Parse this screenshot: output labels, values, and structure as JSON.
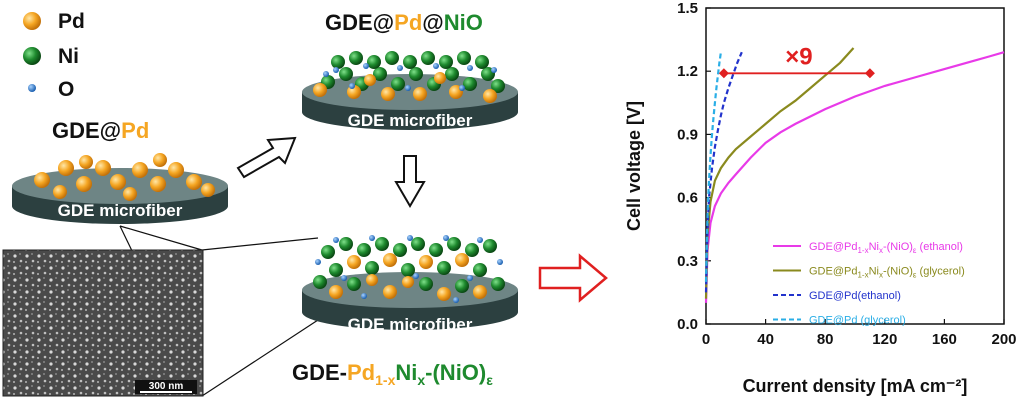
{
  "legend_left": {
    "items": [
      {
        "symbol": "Pd",
        "color": "#f5a623"
      },
      {
        "symbol": "Ni",
        "color": "#1e8a2e"
      },
      {
        "symbol": "O",
        "color": "#2a7fd4"
      }
    ]
  },
  "disk_label": "GDE microfiber",
  "stage1": {
    "prefix": "GDE@",
    "metal": "Pd"
  },
  "stage2": {
    "prefix": "GDE@",
    "metal": "Pd",
    "sep": "@",
    "oxide": "NiO"
  },
  "stage3": {
    "prefix": "GDE-",
    "pd": "Pd",
    "pd_sub": "1-x",
    "ni": "Ni",
    "ni_sub": "x",
    "oxide": "-(NiO)",
    "oxide_sub": "ε"
  },
  "sem": {
    "scale_bar": "300 nm"
  },
  "colors": {
    "pd": "#f5a623",
    "ni": "#1e8a2e",
    "o": "#2a7fd4",
    "disk": "#3e5656",
    "arrow_red": "#e02020"
  },
  "chart_data": {
    "type": "line",
    "xlabel": "Current density [mA cm⁻²]",
    "ylabel": "Cell voltage [V]",
    "xlim": [
      0,
      200
    ],
    "ylim": [
      0,
      1.5
    ],
    "xticks": [
      0,
      40,
      80,
      120,
      160,
      200
    ],
    "yticks": [
      0.0,
      0.3,
      0.6,
      0.9,
      1.2,
      1.5
    ],
    "x_tick_labels": [
      "0",
      "40",
      "80",
      "120",
      "160",
      "200"
    ],
    "y_tick_labels": [
      "0.0",
      "0.3",
      "0.6",
      "0.9",
      "1.2",
      "1.5"
    ],
    "grid": false,
    "legend_position": "bottom-right",
    "annotation": {
      "text": "×9",
      "y": 1.19,
      "x_from": 12,
      "x_to": 110
    },
    "series": [
      {
        "name_parts": [
          "GDE@Pd",
          "1-x",
          "Ni",
          "x",
          "-(NiO)",
          "ε",
          " (ethanol)"
        ],
        "color": "#e83ae8",
        "dash": "solid",
        "x": [
          0,
          1,
          3,
          6,
          10,
          15,
          20,
          30,
          40,
          50,
          60,
          80,
          100,
          120,
          140,
          160,
          180,
          190,
          200
        ],
        "y": [
          0.1,
          0.35,
          0.48,
          0.56,
          0.62,
          0.67,
          0.71,
          0.79,
          0.86,
          0.91,
          0.95,
          1.02,
          1.08,
          1.13,
          1.17,
          1.21,
          1.25,
          1.27,
          1.29
        ]
      },
      {
        "name_parts": [
          "GDE@Pd",
          "1-x",
          "Ni",
          "x",
          "-(NiO)",
          "ε",
          " (glycerol)"
        ],
        "color": "#8a8a1e",
        "dash": "solid",
        "x": [
          0,
          1,
          3,
          6,
          10,
          15,
          20,
          30,
          40,
          50,
          60,
          70,
          80,
          90,
          99
        ],
        "y": [
          0.12,
          0.42,
          0.58,
          0.68,
          0.74,
          0.79,
          0.83,
          0.89,
          0.95,
          1.01,
          1.06,
          1.12,
          1.18,
          1.24,
          1.31
        ]
      },
      {
        "name_parts": [
          "GDE@Pd(ethanol)"
        ],
        "color": "#2233cc",
        "dash": "dashed",
        "x": [
          0,
          1,
          2,
          4,
          6,
          8,
          10,
          12,
          15,
          18,
          21,
          24
        ],
        "y": [
          0.15,
          0.45,
          0.6,
          0.74,
          0.84,
          0.92,
          0.99,
          1.05,
          1.12,
          1.18,
          1.24,
          1.29
        ]
      },
      {
        "name_parts": [
          "GDE@Pd (glycerol)"
        ],
        "color": "#2aaee6",
        "dash": "dashed",
        "x": [
          0,
          1,
          2,
          3,
          4,
          5,
          6,
          7,
          8,
          9,
          10
        ],
        "y": [
          0.2,
          0.52,
          0.68,
          0.8,
          0.9,
          0.98,
          1.05,
          1.12,
          1.18,
          1.24,
          1.29
        ]
      }
    ]
  }
}
